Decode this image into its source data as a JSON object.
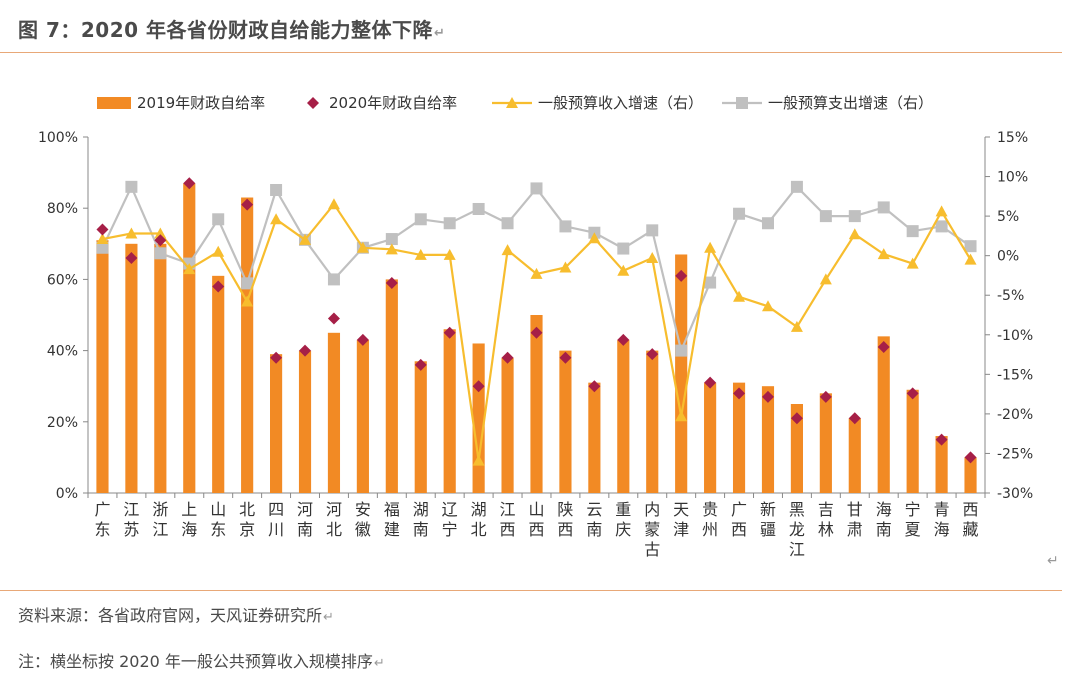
{
  "title": "图 7：2020 年各省份财政自给能力整体下降",
  "source": "资料来源：各省政府官网，天风证券研究所",
  "note": "注：横坐标按 2020 年一般公共预算收入规模排序",
  "chart_data": {
    "type": "bar",
    "categories": [
      "广东",
      "江苏",
      "浙江",
      "上海",
      "山东",
      "北京",
      "四川",
      "河南",
      "河北",
      "安徽",
      "福建",
      "湖南",
      "辽宁",
      "湖北",
      "江西",
      "山西",
      "陕西",
      "云南",
      "重庆",
      "内蒙古",
      "天津",
      "贵州",
      "广西",
      "新疆",
      "黑龙江",
      "吉林",
      "甘肃",
      "海南",
      "宁夏",
      "青海",
      "西藏"
    ],
    "series": [
      {
        "name": "2019年财政自给率",
        "kind": "bar",
        "axis": "left",
        "color": "#f28a24",
        "values": [
          0.71,
          0.7,
          0.7,
          0.87,
          0.61,
          0.83,
          0.39,
          0.4,
          0.45,
          0.43,
          0.6,
          0.37,
          0.46,
          0.42,
          0.38,
          0.5,
          0.4,
          0.31,
          0.43,
          0.4,
          0.67,
          0.31,
          0.31,
          0.3,
          0.25,
          0.28,
          0.21,
          0.44,
          0.29,
          0.16,
          0.1
        ]
      },
      {
        "name": "2020年财政自给率",
        "kind": "marker",
        "axis": "left",
        "color": "#a61f47",
        "values": [
          0.74,
          0.66,
          0.71,
          0.87,
          0.58,
          0.81,
          0.38,
          0.4,
          0.49,
          0.43,
          0.59,
          0.36,
          0.45,
          0.3,
          0.38,
          0.45,
          0.38,
          0.3,
          0.43,
          0.39,
          0.61,
          0.31,
          0.28,
          0.27,
          0.21,
          0.27,
          0.21,
          0.41,
          0.28,
          0.15,
          0.1
        ]
      },
      {
        "name": "一般预算收入增速（右）",
        "kind": "line",
        "axis": "right",
        "color": "#f7bd2e",
        "values": [
          2.1,
          2.8,
          2.8,
          -1.7,
          0.5,
          -5.8,
          4.6,
          2.0,
          6.5,
          1.0,
          0.8,
          0.1,
          0.1,
          -25.9,
          0.7,
          -2.3,
          -1.5,
          2.2,
          -1.9,
          -0.3,
          -20.3,
          1.0,
          -5.2,
          -6.4,
          -9.0,
          -3.0,
          2.7,
          0.2,
          -1.0,
          5.6,
          -0.5
        ]
      },
      {
        "name": "一般预算支出增速（右）",
        "kind": "line",
        "axis": "right",
        "color": "#c0c0c0",
        "values": [
          1.0,
          8.7,
          0.3,
          -1.0,
          4.6,
          -3.5,
          8.3,
          2.0,
          -3.0,
          1.0,
          2.1,
          4.6,
          4.1,
          5.9,
          4.1,
          8.5,
          3.7,
          2.9,
          0.9,
          3.2,
          -12.0,
          -3.4,
          5.3,
          4.1,
          8.7,
          5.0,
          5.0,
          6.1,
          3.1,
          3.7,
          1.2
        ]
      }
    ],
    "ylim": [
      0,
      1
    ],
    "y_ticks": [
      "0%",
      "20%",
      "40%",
      "60%",
      "80%",
      "100%"
    ],
    "y2lim": [
      -30,
      15
    ],
    "y2_ticks": [
      "-30%",
      "-25%",
      "-20%",
      "-15%",
      "-10%",
      "-5%",
      "0%",
      "5%",
      "10%",
      "15%"
    ],
    "legend": "top",
    "grid": false
  }
}
